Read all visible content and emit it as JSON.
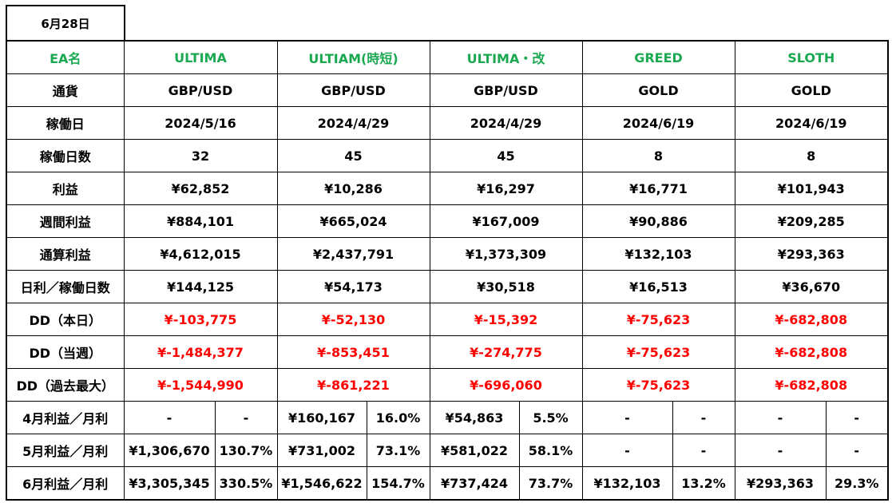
{
  "date_label": "6月28日",
  "ea_label": "EA名",
  "eas": [
    {
      "name": "ULTIMA",
      "currency": "GBP/USD",
      "start": "2024/5/16",
      "days": "32",
      "profit": "¥62,852",
      "weekly": "¥884,101",
      "total": "¥4,612,015",
      "per_day": "¥144,125",
      "dd_today": "¥-103,775",
      "dd_week": "¥-1,484,377",
      "dd_max": "¥-1,544,990",
      "apr_amount": "-",
      "apr_pct": "-",
      "may_amount": "¥1,306,670",
      "may_pct": "130.7%",
      "jun_amount": "¥3,305,345",
      "jun_pct": "330.5%"
    },
    {
      "name": "ULTIAM(時短)",
      "currency": "GBP/USD",
      "start": "2024/4/29",
      "days": "45",
      "profit": "¥10,286",
      "weekly": "¥665,024",
      "total": "¥2,437,791",
      "per_day": "¥54,173",
      "dd_today": "¥-52,130",
      "dd_week": "¥-853,451",
      "dd_max": "¥-861,221",
      "apr_amount": "¥160,167",
      "apr_pct": "16.0%",
      "may_amount": "¥731,002",
      "may_pct": "73.1%",
      "jun_amount": "¥1,546,622",
      "jun_pct": "154.7%"
    },
    {
      "name": "ULTIMA・改",
      "currency": "GBP/USD",
      "start": "2024/4/29",
      "days": "45",
      "profit": "¥16,297",
      "weekly": "¥167,009",
      "total": "¥1,373,309",
      "per_day": "¥30,518",
      "dd_today": "¥-15,392",
      "dd_week": "¥-274,775",
      "dd_max": "¥-696,060",
      "apr_amount": "¥54,863",
      "apr_pct": "5.5%",
      "may_amount": "¥581,022",
      "may_pct": "58.1%",
      "jun_amount": "¥737,424",
      "jun_pct": "73.7%"
    },
    {
      "name": "GREED",
      "currency": "GOLD",
      "start": "2024/6/19",
      "days": "8",
      "profit": "¥16,771",
      "weekly": "¥90,886",
      "total": "¥132,103",
      "per_day": "¥16,513",
      "dd_today": "¥-75,623",
      "dd_week": "¥-75,623",
      "dd_max": "¥-75,623",
      "apr_amount": "-",
      "apr_pct": "-",
      "may_amount": "-",
      "may_pct": "-",
      "jun_amount": "¥132,103",
      "jun_pct": "13.2%"
    },
    {
      "name": "SLOTH",
      "currency": "GOLD",
      "start": "2024/6/19",
      "days": "8",
      "profit": "¥101,943",
      "weekly": "¥209,285",
      "total": "¥293,363",
      "per_day": "¥36,670",
      "dd_today": "¥-682,808",
      "dd_week": "¥-682,808",
      "dd_max": "¥-682,808",
      "apr_amount": "-",
      "apr_pct": "-",
      "may_amount": "-",
      "may_pct": "-",
      "jun_amount": "¥293,363",
      "jun_pct": "29.3%"
    }
  ],
  "rows": [
    {
      "label": "通貨",
      "key": "currency",
      "style": "normal"
    },
    {
      "label": "稼働日",
      "key": "start",
      "style": "normal"
    },
    {
      "label": "稼働日数",
      "key": "days",
      "style": "normal"
    },
    {
      "label": "利益",
      "key": "profit",
      "style": "normal"
    },
    {
      "label": "週間利益",
      "key": "weekly",
      "style": "normal"
    },
    {
      "label": "通算利益",
      "key": "total",
      "style": "normal"
    },
    {
      "label": "日利／稼働日数",
      "key": "per_day",
      "style": "normal"
    },
    {
      "label": "DD（本日）",
      "key": "dd_today",
      "style": "red"
    },
    {
      "label": "DD（当週）",
      "key": "dd_week",
      "style": "red"
    },
    {
      "label": "DD（過去最大）",
      "key": "dd_max",
      "style": "red"
    }
  ],
  "monthly_rows": [
    {
      "label": "4月利益／月利",
      "amount_key": "apr_amount",
      "pct_key": "apr_pct"
    },
    {
      "label": "5月利益／月利",
      "amount_key": "may_amount",
      "pct_key": "may_pct"
    },
    {
      "label": "6月利益／月利",
      "amount_key": "jun_amount",
      "pct_key": "jun_pct"
    }
  ],
  "colors": {
    "header_green": "#1aa850",
    "dd_red": "#ff0000"
  }
}
